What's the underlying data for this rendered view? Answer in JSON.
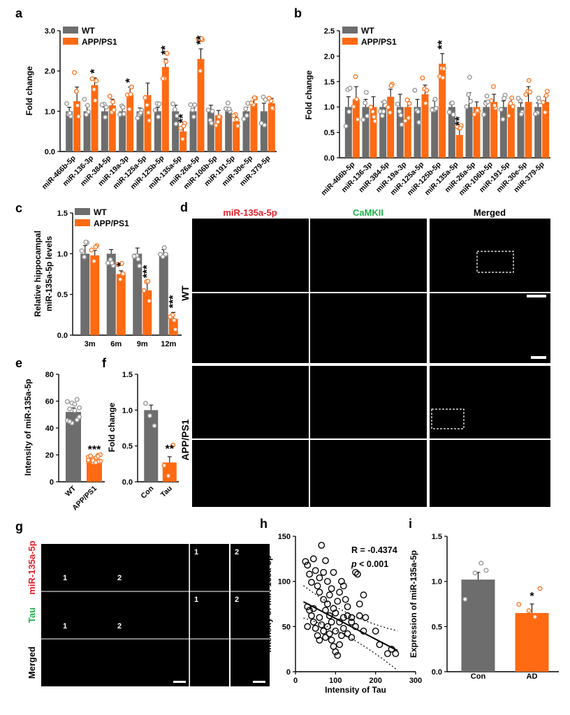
{
  "colors": {
    "wt": "#6d6d6d",
    "app": "#ff6a13",
    "red": "#e4202a",
    "green": "#1fb14a",
    "grayPt": "#9a9a9a",
    "appPt": "#ff7a2a"
  },
  "panels": {
    "a": {
      "letter": "a",
      "ylabel": "Fold change",
      "legend": [
        "WT",
        "APP/PS1"
      ]
    },
    "b": {
      "letter": "b",
      "ylabel": "Fold change",
      "legend": [
        "WT",
        "APP/PS1"
      ]
    },
    "c": {
      "letter": "c",
      "ylabel1": "Relative hippocampal",
      "ylabel2": "miR-135a-5p levels",
      "legend": [
        "WT",
        "APP/PS1"
      ]
    },
    "d": {
      "letter": "d",
      "col1": "miR-135a-5p",
      "col2": "CaMKII",
      "col3": "Merged",
      "row1": "WT",
      "row2": "APP/PS1"
    },
    "e": {
      "letter": "e",
      "ylabel": "Intensity of miR-135a-5p"
    },
    "f": {
      "letter": "f",
      "ylabel": "Fold change"
    },
    "g": {
      "letter": "g",
      "row1": "miR-135a-5p",
      "row2": "Tau",
      "row3": "Merged",
      "marker1": "1",
      "marker2": "2"
    },
    "h": {
      "letter": "h",
      "r_text": "R = -0.4374",
      "p_italic": "p",
      "p_rest": " < 0.001"
    },
    "i": {
      "letter": "i",
      "ylabel": "Expression of miR-135a-5p"
    }
  },
  "chart_data": [
    {
      "panel": "a",
      "type": "bar",
      "ylabel": "Fold change",
      "ylim": [
        0,
        3.0
      ],
      "yticks": [
        "0.0",
        "1.0",
        "2.0",
        "3.0"
      ],
      "categories": [
        "miR-466b-5p",
        "miR-136-3p",
        "miR-384-5p",
        "miR-19a-3p",
        "miR-125a-5p",
        "miR-125b-5p",
        "miR-135a-5p",
        "miR-26a-5p",
        "miR-106b-5p",
        "miR-191-5p",
        "miR-30e-5p",
        "miR-379-5p"
      ],
      "series": [
        {
          "name": "WT",
          "values": [
            1.0,
            1.0,
            1.0,
            1.0,
            1.0,
            1.0,
            1.0,
            1.0,
            1.0,
            1.0,
            1.0,
            1.0
          ],
          "errors": [
            0.1,
            0.15,
            0.1,
            0.1,
            0.08,
            0.1,
            0.15,
            0.08,
            0.15,
            0.1,
            0.1,
            0.2
          ]
        },
        {
          "name": "APP/PS1",
          "values": [
            1.25,
            1.65,
            1.15,
            1.4,
            1.4,
            2.1,
            0.5,
            2.3,
            0.9,
            0.75,
            1.2,
            1.2
          ],
          "errors": [
            0.35,
            0.18,
            0.15,
            0.2,
            0.3,
            0.2,
            0.1,
            0.25,
            0.12,
            0.1,
            0.15,
            0.12
          ]
        }
      ],
      "significance": [
        "",
        "*",
        "",
        "*",
        "",
        "**",
        "**",
        "**",
        "",
        "",
        "",
        ""
      ]
    },
    {
      "panel": "b",
      "type": "bar",
      "ylabel": "Fold change",
      "ylim": [
        0,
        2.5
      ],
      "yticks": [
        "0.0",
        "0.5",
        "1.0",
        "1.5",
        "2.0",
        "2.5"
      ],
      "categories": [
        "miR-466b-5p",
        "miR-136-3p",
        "miR-384-5p",
        "miR-19a-3p",
        "miR-125a-5p",
        "miR-125b-5p",
        "miR-135a-5p",
        "miR-26a-5p",
        "miR-106b-5p",
        "miR-191-5p",
        "miR-30e-5p",
        "miR-379-5p"
      ],
      "series": [
        {
          "name": "WT",
          "values": [
            1.0,
            1.0,
            1.0,
            1.0,
            1.0,
            1.0,
            1.0,
            1.0,
            1.0,
            1.0,
            1.0,
            1.0
          ],
          "errors": [
            0.2,
            0.15,
            0.1,
            0.25,
            0.15,
            0.12,
            0.05,
            0.28,
            0.12,
            0.12,
            0.08,
            0.08
          ]
        },
        {
          "name": "APP/PS1",
          "values": [
            1.15,
            1.0,
            1.2,
            1.0,
            1.25,
            1.85,
            0.45,
            1.0,
            1.1,
            1.05,
            1.1,
            1.1
          ],
          "errors": [
            0.25,
            0.2,
            0.15,
            0.15,
            0.18,
            0.2,
            0.1,
            0.1,
            0.15,
            0.12,
            0.3,
            0.1
          ]
        }
      ],
      "significance": [
        "",
        "",
        "",
        "",
        "",
        "**",
        "**",
        "",
        "",
        "",
        "",
        ""
      ]
    },
    {
      "panel": "c",
      "type": "bar",
      "ylim": [
        0,
        1.5
      ],
      "yticks": [
        "0.0",
        "0.5",
        "1.0",
        "1.5"
      ],
      "categories": [
        "3m",
        "6m",
        "9m",
        "12m"
      ],
      "series": [
        {
          "name": "WT",
          "values": [
            1.0,
            1.0,
            1.0,
            1.0
          ],
          "errors": [
            0.1,
            0.05,
            0.07,
            0.05
          ]
        },
        {
          "name": "APP/PS1",
          "values": [
            0.98,
            0.75,
            0.55,
            0.2
          ],
          "errors": [
            0.06,
            0.04,
            0.1,
            0.08
          ]
        }
      ],
      "significance": [
        "",
        "*",
        "***",
        "***"
      ]
    },
    {
      "panel": "e",
      "type": "bar",
      "ylabel": "Intensity of miR-135a-5p",
      "ylim": [
        0,
        80
      ],
      "yticks": [
        "0",
        "20",
        "40",
        "60",
        "80"
      ],
      "categories": [
        "WT",
        "APP/PS1"
      ],
      "values": [
        52,
        17
      ],
      "errors": [
        3,
        1.2
      ],
      "significance": [
        "",
        "***"
      ]
    },
    {
      "panel": "f",
      "type": "bar",
      "ylabel": "Fold change",
      "ylim": [
        0,
        1.5
      ],
      "yticks": [
        "0.0",
        "0.5",
        "1.0",
        "1.5"
      ],
      "categories": [
        "Con",
        "Tau"
      ],
      "values": [
        1.0,
        0.27
      ],
      "errors": [
        0.07,
        0.08
      ],
      "significance": [
        "",
        "**"
      ]
    },
    {
      "panel": "h",
      "type": "scatter",
      "xlabel": "Intensity of Tau",
      "ylabel": "Intensity of miR-135a-5p",
      "xlim": [
        0,
        300
      ],
      "ylim": [
        0,
        150
      ],
      "xticks": [
        "0",
        "100",
        "200",
        "300"
      ],
      "yticks": [
        "0",
        "50",
        "100",
        "150"
      ],
      "points": [
        [
          25,
          122
        ],
        [
          30,
          118
        ],
        [
          35,
          108
        ],
        [
          40,
          99
        ],
        [
          45,
          125
        ],
        [
          50,
          112
        ],
        [
          60,
          104
        ],
        [
          65,
          140
        ],
        [
          70,
          110
        ],
        [
          75,
          123
        ],
        [
          80,
          100
        ],
        [
          55,
          95
        ],
        [
          60,
          88
        ],
        [
          70,
          80
        ],
        [
          80,
          75
        ],
        [
          85,
          85
        ],
        [
          90,
          92
        ],
        [
          95,
          70
        ],
        [
          100,
          65
        ],
        [
          105,
          78
        ],
        [
          110,
          88
        ],
        [
          115,
          100
        ],
        [
          120,
          95
        ],
        [
          125,
          80
        ],
        [
          130,
          72
        ],
        [
          140,
          60
        ],
        [
          150,
          110
        ],
        [
          155,
          108
        ],
        [
          160,
          75
        ],
        [
          170,
          85
        ],
        [
          30,
          72
        ],
        [
          35,
          68
        ],
        [
          40,
          62
        ],
        [
          45,
          55
        ],
        [
          50,
          48
        ],
        [
          55,
          40
        ],
        [
          60,
          35
        ],
        [
          65,
          52
        ],
        [
          70,
          45
        ],
        [
          75,
          38
        ],
        [
          80,
          50
        ],
        [
          85,
          42
        ],
        [
          90,
          35
        ],
        [
          95,
          28
        ],
        [
          100,
          22
        ],
        [
          105,
          18
        ],
        [
          110,
          30
        ],
        [
          115,
          40
        ],
        [
          120,
          48
        ],
        [
          130,
          42
        ],
        [
          140,
          55
        ],
        [
          150,
          50
        ],
        [
          160,
          62
        ],
        [
          170,
          45
        ],
        [
          175,
          60
        ],
        [
          200,
          45
        ],
        [
          210,
          30
        ],
        [
          230,
          20
        ],
        [
          240,
          25
        ],
        [
          250,
          20
        ],
        [
          90,
          55
        ],
        [
          100,
          45
        ],
        [
          120,
          60
        ],
        [
          60,
          60
        ],
        [
          45,
          70
        ],
        [
          30,
          50
        ],
        [
          130,
          62
        ],
        [
          140,
          38
        ],
        [
          110,
          55
        ],
        [
          85,
          62
        ],
        [
          75,
          68
        ],
        [
          95,
          110
        ]
      ],
      "fit": {
        "slope": -0.23,
        "intercept": 82
      },
      "annotation": "R = -0.4374, p < 0.001"
    },
    {
      "panel": "i",
      "type": "bar",
      "ylabel": "Expression of miR-135a-5p",
      "ylim": [
        0,
        1.5
      ],
      "yticks": [
        "0.0",
        "0.5",
        "1.0",
        "1.5"
      ],
      "categories": [
        "Con",
        "AD"
      ],
      "values": [
        1.02,
        0.65
      ],
      "errors": [
        0.08,
        0.1
      ],
      "significance": [
        "",
        "*"
      ]
    }
  ]
}
